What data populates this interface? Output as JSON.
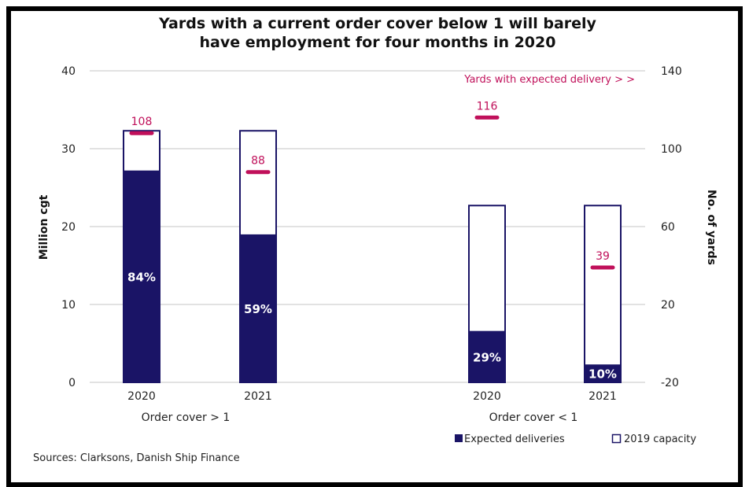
{
  "chart_data": {
    "type": "bar",
    "title_lines": [
      "Yards with a current order cover below 1 will barely",
      "have employment for four months in 2020"
    ],
    "ylabel": "Million cgt",
    "y2label": "No. of yards",
    "ylim": [
      0,
      40
    ],
    "yticks": [
      0,
      10,
      20,
      30,
      40
    ],
    "y2lim": [
      -20,
      140
    ],
    "y2ticks": [
      -20,
      20,
      60,
      100,
      140
    ],
    "groups": [
      {
        "label": "Order cover > 1",
        "categories": [
          "2020",
          "2021"
        ]
      },
      {
        "label": "Order cover < 1",
        "categories": [
          "2020",
          "2021"
        ]
      }
    ],
    "categories": [
      "2020",
      "2021",
      "2020",
      "2021"
    ],
    "series": [
      {
        "name": "Expected deliveries",
        "values": [
          27.2,
          19.0,
          6.6,
          2.3
        ],
        "color": "#1a1466"
      },
      {
        "name": "2019 capacity",
        "values": [
          32.3,
          32.3,
          22.7,
          22.7
        ],
        "color": "#1a1466"
      }
    ],
    "share_labels": [
      "84%",
      "59%",
      "29%",
      "10%"
    ],
    "yards": {
      "values": [
        108,
        88,
        116,
        39
      ],
      "labels": [
        "108",
        "88",
        "116",
        "39"
      ],
      "color": "#c0105a"
    },
    "annotation": "Yards with expected delivery > >",
    "legend": {
      "placement": "bottom-right",
      "items": [
        "Expected deliveries",
        "2019 capacity"
      ]
    },
    "grid": true,
    "source": "Sources: Clarksons, Danish Ship Finance"
  }
}
